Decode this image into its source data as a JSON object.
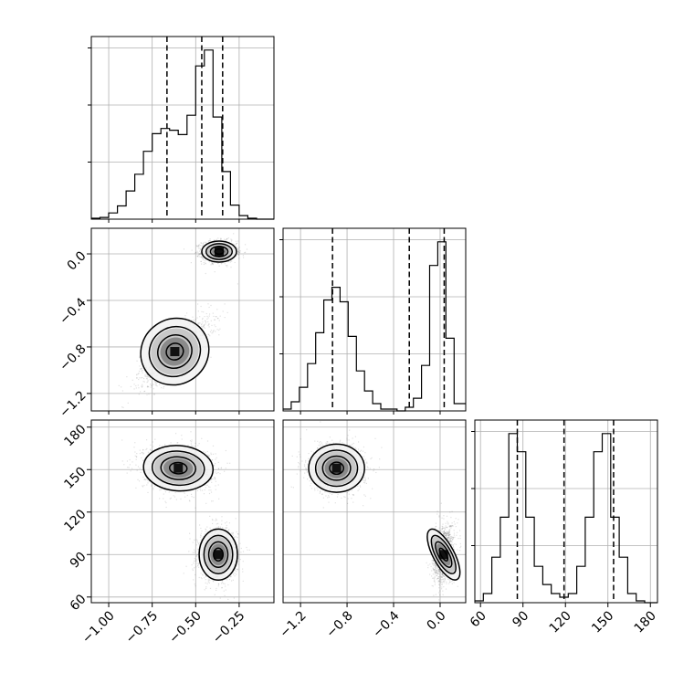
{
  "chart_data": {
    "type": "corner",
    "grid": true,
    "parameters": [
      {
        "range": [
          -1.1,
          -0.05
        ]
      },
      {
        "range": [
          -1.35,
          0.22
        ]
      },
      {
        "range": [
          56,
          185
        ]
      }
    ],
    "x_ticks": [
      [
        -1.0,
        -0.75,
        -0.5,
        -0.25
      ],
      [
        -1.2,
        -0.8,
        -0.4,
        0.0
      ],
      [
        60,
        90,
        120,
        150,
        180
      ]
    ],
    "x_tick_labels": [
      [
        "−1.00",
        "−0.75",
        "−0.50",
        "−0.25"
      ],
      [
        "−1.2",
        "−0.8",
        "−0.4",
        "0.0"
      ],
      [
        "60",
        "90",
        "120",
        "150",
        "180"
      ]
    ],
    "y_ticks": [
      [
        0.0,
        -0.4,
        -0.8,
        -1.2
      ],
      [
        180,
        150,
        120,
        90,
        60
      ]
    ],
    "y_tick_labels": [
      [
        "0.0",
        "−0.4",
        "−0.8",
        "−1.2"
      ],
      [
        "180",
        "150",
        "120",
        "90",
        "60"
      ]
    ],
    "quantiles": [
      [
        -0.665,
        -0.465,
        -0.345
      ],
      [
        -0.925,
        -0.265,
        0.035
      ],
      [
        86,
        119,
        154
      ]
    ],
    "histograms": [
      {
        "bin_edges": [
          -1.1,
          -1.05,
          -1.0,
          -0.95,
          -0.9,
          -0.85,
          -0.8,
          -0.75,
          -0.7,
          -0.65,
          -0.6,
          -0.55,
          -0.5,
          -0.45,
          -0.4,
          -0.35,
          -0.3,
          -0.25,
          -0.2,
          -0.15,
          -0.1,
          -0.05
        ],
        "counts": [
          0.005,
          0.01,
          0.035,
          0.075,
          0.16,
          0.255,
          0.385,
          0.485,
          0.515,
          0.505,
          0.48,
          0.59,
          0.87,
          0.96,
          0.58,
          0.27,
          0.08,
          0.02,
          0.005,
          0,
          0
        ]
      },
      {
        "bin_edges": [
          -1.35,
          -1.28,
          -1.21,
          -1.14,
          -1.07,
          -1.0,
          -0.93,
          -0.86,
          -0.79,
          -0.72,
          -0.65,
          -0.58,
          -0.51,
          -0.44,
          -0.37,
          -0.3,
          -0.23,
          -0.16,
          -0.09,
          -0.02,
          0.05,
          0.12,
          0.22
        ],
        "counts": [
          0.01,
          0.05,
          0.13,
          0.26,
          0.43,
          0.61,
          0.68,
          0.6,
          0.41,
          0.22,
          0.11,
          0.04,
          0.01,
          0.01,
          0.0,
          0.02,
          0.07,
          0.25,
          0.8,
          0.93,
          0.4,
          0.04
        ]
      },
      {
        "bin_edges": [
          56,
          62,
          68,
          74,
          80,
          86,
          92,
          98,
          104,
          110,
          116,
          122,
          128,
          134,
          140,
          146,
          152,
          158,
          164,
          170,
          176,
          182,
          185
        ],
        "counts": [
          0.01,
          0.05,
          0.25,
          0.47,
          0.93,
          0.83,
          0.47,
          0.2,
          0.1,
          0.05,
          0.03,
          0.05,
          0.2,
          0.47,
          0.83,
          0.93,
          0.47,
          0.25,
          0.05,
          0.01,
          0.0,
          0.0
        ]
      }
    ],
    "joint": [
      {
        "x_param": 0,
        "y_param": 1,
        "modes": [
          {
            "center": [
              -0.365,
              0.02
            ],
            "sd": [
              0.05,
              0.045
            ],
            "corr": 0.0,
            "weight": 0.5
          },
          {
            "center": [
              -0.62,
              -0.84
            ],
            "sd": [
              0.1,
              0.14
            ],
            "corr": 0.75,
            "weight": 0.5
          }
        ]
      },
      {
        "x_param": 0,
        "y_param": 2,
        "modes": [
          {
            "center": [
              -0.37,
              90
            ],
            "sd": [
              0.055,
              9.0
            ],
            "corr": 0.0,
            "weight": 0.5
          },
          {
            "center": [
              -0.6,
              151
            ],
            "sd": [
              0.1,
              8.0
            ],
            "corr": -0.1,
            "weight": 0.5
          }
        ]
      },
      {
        "x_param": 1,
        "y_param": 2,
        "modes": [
          {
            "center": [
              0.03,
              90
            ],
            "sd": [
              0.045,
              10.0
            ],
            "corr": 0.2,
            "weight": 0.5
          },
          {
            "center": [
              -0.89,
              151
            ],
            "sd": [
              0.12,
              8.5
            ],
            "corr": 0.0,
            "weight": 0.5
          }
        ]
      }
    ],
    "contour_levels_sigma": [
      0.5,
      1.0,
      1.5,
      2.0
    ]
  }
}
